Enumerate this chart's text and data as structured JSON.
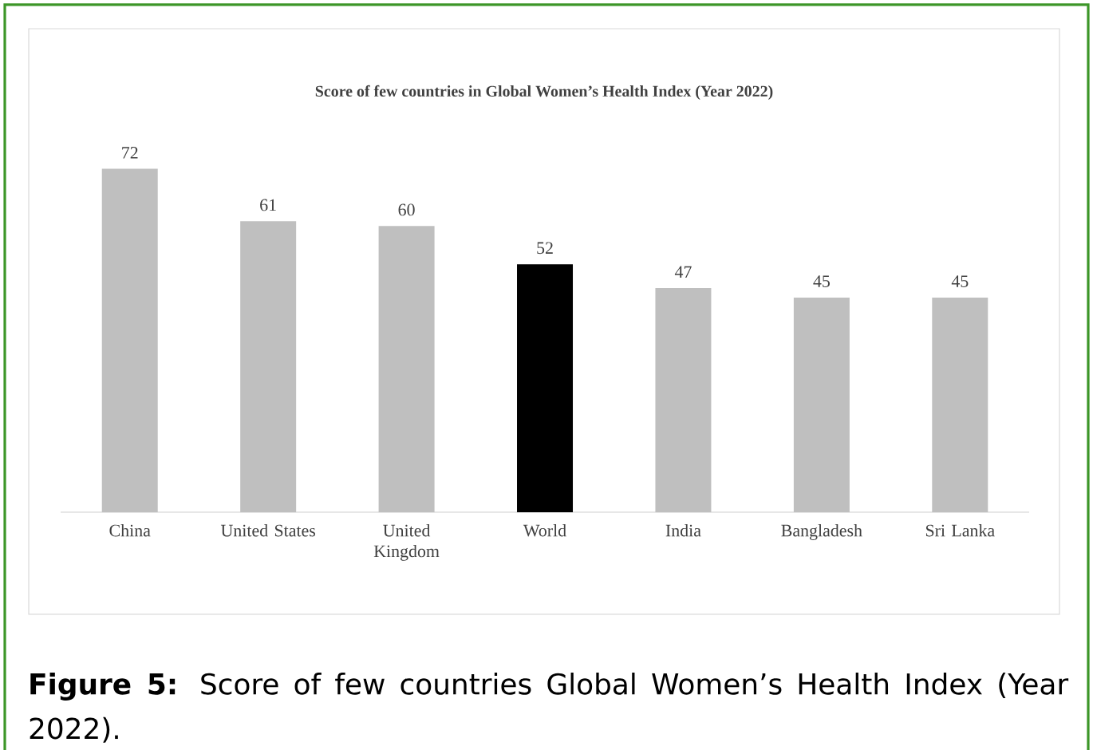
{
  "chart_data": {
    "type": "bar",
    "title": "Score of few countries in Global Women’s Health Index (Year 2022)",
    "categories": [
      "China",
      "United States",
      "United Kingdom",
      "World",
      "India",
      "Bangladesh",
      "Sri Lanka"
    ],
    "values": [
      72,
      61,
      60,
      52,
      47,
      45,
      45
    ],
    "colors": [
      "#bfbfbf",
      "#bfbfbf",
      "#bfbfbf",
      "#000000",
      "#bfbfbf",
      "#bfbfbf",
      "#bfbfbf"
    ],
    "data_labels": true,
    "annotations": [
      "**Figure 5:** Score of few countries Global Women’s Health Index (Year 2022)."
    ]
  }
}
